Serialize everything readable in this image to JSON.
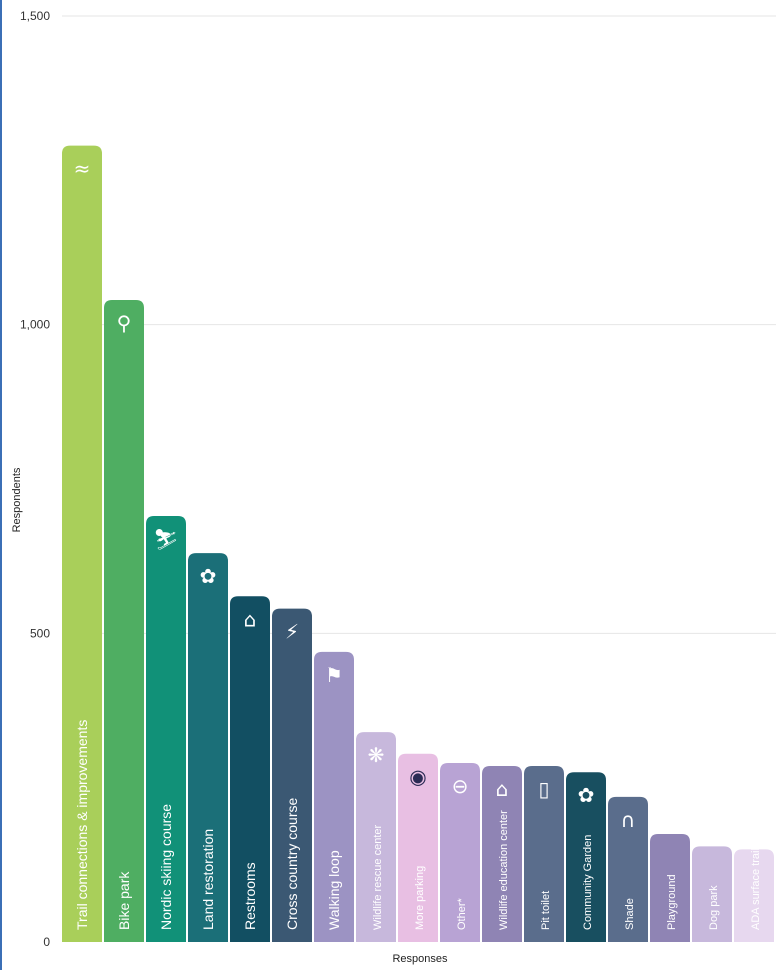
{
  "chart_data": {
    "type": "bar",
    "title": "",
    "xlabel": "Responses",
    "ylabel": "Respondents",
    "ylim": [
      0,
      1500
    ],
    "yticks": [
      {
        "value": 0,
        "label": "0"
      },
      {
        "value": 500,
        "label": "500"
      },
      {
        "value": 1000,
        "label": "1,000"
      },
      {
        "value": 1500,
        "label": "1,500"
      }
    ],
    "grid": true,
    "legend": "none",
    "categories": [
      "Trail connections & improvements",
      "Bike park",
      "Nordic skiing course",
      "Land restoration",
      "Restrooms",
      "Cross country course",
      "Walking loop",
      "Wildlife rescue center",
      "More parking",
      "Other*",
      "Wildlife education center",
      "Pit toilet",
      "Community Garden",
      "Shade",
      "Playground",
      "Dog park",
      "ADA surface trails"
    ],
    "values": [
      1290,
      1040,
      690,
      630,
      560,
      540,
      470,
      340,
      305,
      290,
      285,
      285,
      275,
      235,
      175,
      155,
      150
    ],
    "colors": [
      "#a9cf5a",
      "#4fae62",
      "#119178",
      "#1b6f78",
      "#124f62",
      "#3b5873",
      "#9c93c3",
      "#c7b8dc",
      "#e8bfe3",
      "#b8a3d4",
      "#8f84b4",
      "#5a6d8c",
      "#184f60",
      "#5a6d8c",
      "#8f84b4",
      "#c7b8dc",
      "#e7d8ef"
    ],
    "label_colors": [
      "#ffffff",
      "#ffffff",
      "#ffffff",
      "#ffffff",
      "#ffffff",
      "#ffffff",
      "#ffffff",
      "#ffffff",
      "#2b2b55",
      "#ffffff",
      "#ffffff",
      "#ffffff",
      "#ffffff",
      "#ffffff",
      "#ffffff",
      "#2b2b55",
      "#2b2b55"
    ],
    "icons": [
      "trail-icon",
      "bike-icon",
      "skier-icon",
      "plant-icon",
      "restroom-building-icon",
      "runner-icon",
      "walker-icon",
      "paw-icon",
      "map-pin-icon",
      "other-circle-icon",
      "graduation-cap-icon",
      "toilet-icon",
      "garden-icon",
      "shade-arch-icon",
      "",
      "",
      ""
    ],
    "icon_glyphs": [
      "≈",
      "⚲",
      "⛷",
      "✿",
      "⌂",
      "⚡",
      "⚑",
      "❋",
      "◉",
      "⊖",
      "⌂",
      "▯",
      "✿",
      "∩",
      "",
      "",
      ""
    ]
  }
}
